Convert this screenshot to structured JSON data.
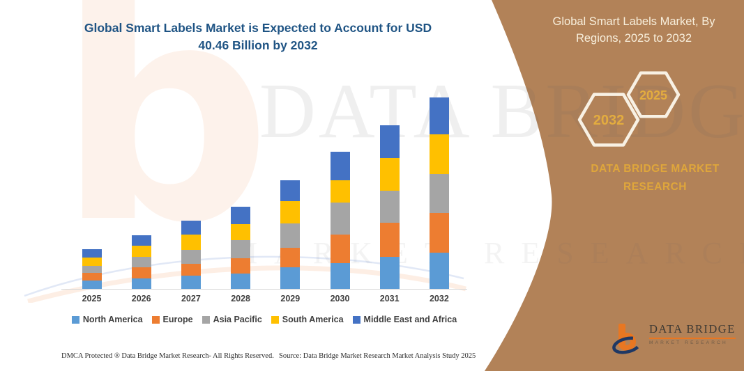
{
  "page": {
    "chart_title": "Global Smart Labels Market is Expected to Account for USD 40.46 Billion by 2032"
  },
  "chart_data": {
    "type": "bar",
    "stacked": true,
    "title": "Global Smart Labels Market is Expected to Account for USD 40.46 Billion by 2032",
    "unit": "USD Billion",
    "values_estimated_from_pixels": true,
    "categories": [
      "2025",
      "2026",
      "2027",
      "2028",
      "2029",
      "2030",
      "2031",
      "2032"
    ],
    "series": [
      {
        "name": "North America",
        "color": "#5B9BD5",
        "values": [
          1.8,
          2.2,
          2.8,
          3.3,
          4.6,
          5.5,
          6.8,
          7.7
        ]
      },
      {
        "name": "Europe",
        "color": "#ED7D31",
        "values": [
          1.6,
          2.3,
          2.5,
          3.2,
          4.1,
          6.0,
          7.2,
          8.3
        ]
      },
      {
        "name": "Asia Pacific",
        "color": "#A5A5A5",
        "values": [
          1.5,
          2.3,
          2.9,
          3.8,
          5.2,
          6.7,
          6.7,
          8.2
        ]
      },
      {
        "name": "South America",
        "color": "#FFC000",
        "values": [
          1.7,
          2.3,
          3.3,
          3.4,
          4.7,
          4.8,
          7.0,
          8.4
        ]
      },
      {
        "name": "Middle East and Africa",
        "color": "#4472C4",
        "values": [
          1.8,
          2.2,
          2.9,
          3.7,
          4.3,
          6.0,
          6.9,
          7.86
        ]
      }
    ],
    "highlight_total": {
      "year": "2032",
      "value": 40.46
    },
    "xlabel": "",
    "ylabel": "",
    "gridlines": false,
    "legend_position": "bottom"
  },
  "panel": {
    "title": "Global Smart Labels Market, By Regions, 2025 to 2032",
    "title_line1": "Global Smart Labels Market, By",
    "title_line2": "Regions, 2025 to 2032",
    "hexagon_back_label": "2032",
    "hexagon_front_label": "2025",
    "brand_name": "DATA BRIDGE MARKET RESEARCH",
    "background_color": "#B28258",
    "accent_gold": "#DFA63B",
    "hexagon_stroke": "#F8F1E4"
  },
  "logo": {
    "name": "DATA BRIDGE",
    "subtitle": "MARKET RESEARCH"
  },
  "watermark": {
    "glyph": "b",
    "line1": "DATA BRIDGE",
    "line2": "MARKET RESEARCH"
  },
  "footer": {
    "dmca": "DMCA Protected ® Data Bridge Market Research-  All Rights Reserved.",
    "source": "Source: Data Bridge Market Research  Market Analysis Study 2025"
  }
}
